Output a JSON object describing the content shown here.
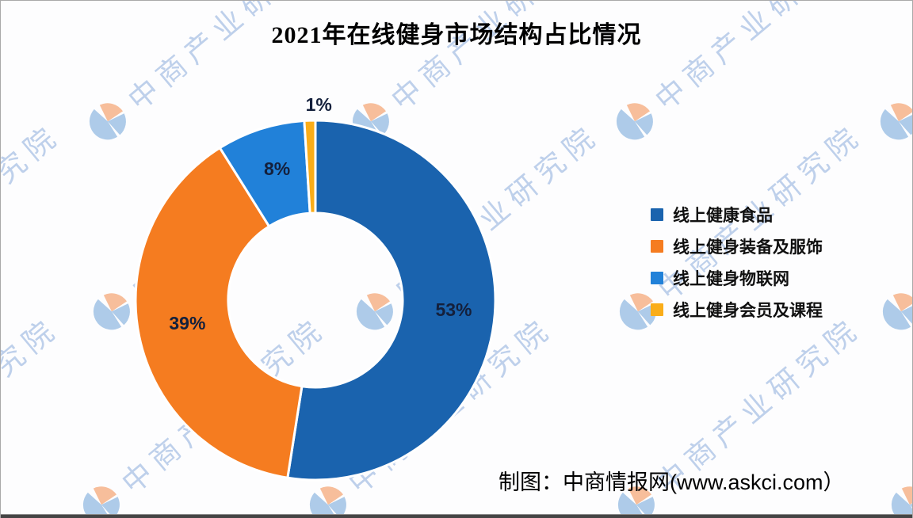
{
  "title": "2021年在线健身市场结构占比情况",
  "watermark": {
    "text": "中商产业研究院",
    "logo": "askci-globe-logo"
  },
  "chart_data": {
    "type": "pie",
    "subtype": "donut",
    "title": "2021年在线健身市场结构占比情况",
    "unit": "%",
    "categories": [
      "线上健康食品",
      "线上健身装备及服饰",
      "线上健身物联网",
      "线上健身会员及课程"
    ],
    "values": [
      53,
      39,
      8,
      1
    ],
    "labels": [
      "53%",
      "39%",
      "8%",
      "1%"
    ],
    "colors": [
      "#1A63AE",
      "#F57C20",
      "#2181D9",
      "#FAAD19"
    ],
    "start_angle_deg": 0,
    "direction": "clockwise",
    "legend_position": "right",
    "label_color": "#14203C"
  },
  "legend": {
    "items": [
      {
        "label": "线上健康食品",
        "color": "#1A63AE"
      },
      {
        "label": "线上健身装备及服饰",
        "color": "#F57C20"
      },
      {
        "label": "线上健身物联网",
        "color": "#2181D9"
      },
      {
        "label": "线上健身会员及课程",
        "color": "#FAAD19"
      }
    ]
  },
  "footer": {
    "credit": "制图：中商情报网(www.askci.com）"
  }
}
